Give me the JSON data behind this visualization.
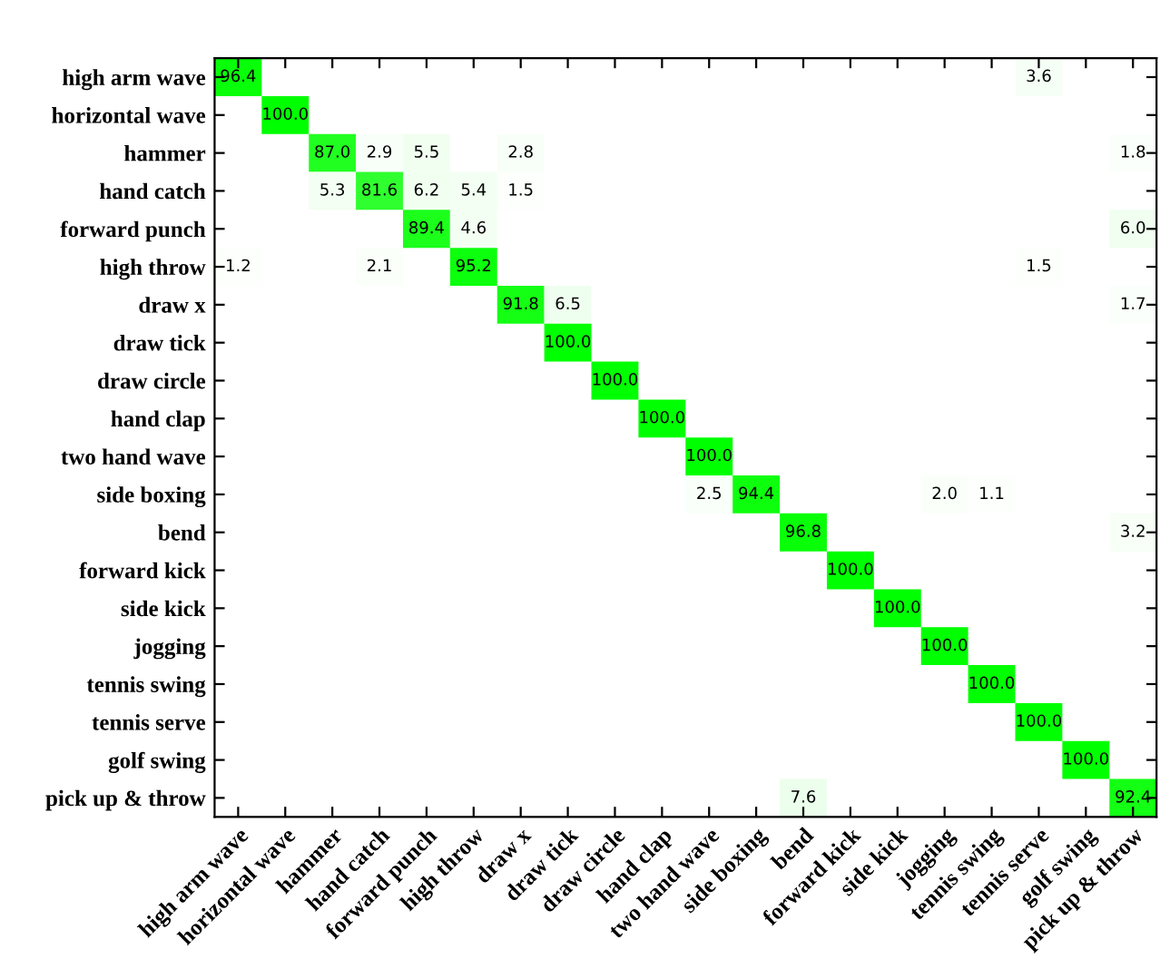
{
  "chart_data": {
    "type": "heatmap",
    "categories": [
      "high arm wave",
      "horizontal wave",
      "hammer",
      "hand catch",
      "forward punch",
      "high throw",
      "draw x",
      "draw tick",
      "draw circle",
      "hand clap",
      "two hand wave",
      "side boxing",
      "bend",
      "forward kick",
      "side kick",
      "jogging",
      "tennis swing",
      "tennis serve",
      "golf swing",
      "pick up & throw"
    ],
    "y_categories": [
      "high arm wave",
      "horizontal wave",
      "hammer",
      "hand catch",
      "forward punch",
      "high throw",
      "draw x",
      "draw tick",
      "draw circle",
      "hand clap",
      "two hand wave",
      "side boxing",
      "bend",
      "forward kick",
      "side kick",
      "jogging",
      "tennis swing",
      "tennis serve",
      "golf swing",
      "pick up & throw"
    ],
    "cells": [
      [
        96.4,
        null,
        null,
        null,
        null,
        null,
        null,
        null,
        null,
        null,
        null,
        null,
        null,
        null,
        null,
        null,
        null,
        3.6,
        null,
        null
      ],
      [
        null,
        100.0,
        null,
        null,
        null,
        null,
        null,
        null,
        null,
        null,
        null,
        null,
        null,
        null,
        null,
        null,
        null,
        null,
        null,
        null
      ],
      [
        null,
        null,
        87.0,
        2.9,
        5.5,
        null,
        2.8,
        null,
        null,
        null,
        null,
        null,
        null,
        null,
        null,
        null,
        null,
        null,
        null,
        1.8
      ],
      [
        null,
        null,
        5.3,
        81.6,
        6.2,
        5.4,
        1.5,
        null,
        null,
        null,
        null,
        null,
        null,
        null,
        null,
        null,
        null,
        null,
        null,
        null
      ],
      [
        null,
        null,
        null,
        null,
        89.4,
        4.6,
        null,
        null,
        null,
        null,
        null,
        null,
        null,
        null,
        null,
        null,
        null,
        null,
        null,
        6.0
      ],
      [
        1.2,
        null,
        null,
        2.1,
        null,
        95.2,
        null,
        null,
        null,
        null,
        null,
        null,
        null,
        null,
        null,
        null,
        null,
        1.5,
        null,
        null
      ],
      [
        null,
        null,
        null,
        null,
        null,
        null,
        91.8,
        6.5,
        null,
        null,
        null,
        null,
        null,
        null,
        null,
        null,
        null,
        null,
        null,
        1.7
      ],
      [
        null,
        null,
        null,
        null,
        null,
        null,
        null,
        100.0,
        null,
        null,
        null,
        null,
        null,
        null,
        null,
        null,
        null,
        null,
        null,
        null
      ],
      [
        null,
        null,
        null,
        null,
        null,
        null,
        null,
        null,
        100.0,
        null,
        null,
        null,
        null,
        null,
        null,
        null,
        null,
        null,
        null,
        null
      ],
      [
        null,
        null,
        null,
        null,
        null,
        null,
        null,
        null,
        null,
        100.0,
        null,
        null,
        null,
        null,
        null,
        null,
        null,
        null,
        null,
        null
      ],
      [
        null,
        null,
        null,
        null,
        null,
        null,
        null,
        null,
        null,
        null,
        100.0,
        null,
        null,
        null,
        null,
        null,
        null,
        null,
        null,
        null
      ],
      [
        null,
        null,
        null,
        null,
        null,
        null,
        null,
        null,
        null,
        null,
        2.5,
        94.4,
        null,
        null,
        null,
        2.0,
        1.1,
        null,
        null,
        null
      ],
      [
        null,
        null,
        null,
        null,
        null,
        null,
        null,
        null,
        null,
        null,
        null,
        null,
        96.8,
        null,
        null,
        null,
        null,
        null,
        null,
        3.2
      ],
      [
        null,
        null,
        null,
        null,
        null,
        null,
        null,
        null,
        null,
        null,
        null,
        null,
        null,
        100.0,
        null,
        null,
        null,
        null,
        null,
        null
      ],
      [
        null,
        null,
        null,
        null,
        null,
        null,
        null,
        null,
        null,
        null,
        null,
        null,
        null,
        null,
        100.0,
        null,
        null,
        null,
        null,
        null
      ],
      [
        null,
        null,
        null,
        null,
        null,
        null,
        null,
        null,
        null,
        null,
        null,
        null,
        null,
        null,
        null,
        100.0,
        null,
        null,
        null,
        null
      ],
      [
        null,
        null,
        null,
        null,
        null,
        null,
        null,
        null,
        null,
        null,
        null,
        null,
        null,
        null,
        null,
        null,
        100.0,
        null,
        null,
        null
      ],
      [
        null,
        null,
        null,
        null,
        null,
        null,
        null,
        null,
        null,
        null,
        null,
        null,
        null,
        null,
        null,
        null,
        null,
        100.0,
        null,
        null
      ],
      [
        null,
        null,
        null,
        null,
        null,
        null,
        null,
        null,
        null,
        null,
        null,
        null,
        null,
        null,
        null,
        null,
        null,
        null,
        100.0,
        null
      ],
      [
        null,
        null,
        null,
        null,
        null,
        null,
        null,
        null,
        null,
        null,
        null,
        null,
        7.6,
        null,
        null,
        null,
        null,
        null,
        null,
        92.4
      ]
    ],
    "cell_labels": [
      [
        "96.4",
        null,
        null,
        null,
        null,
        null,
        null,
        null,
        null,
        null,
        null,
        null,
        null,
        null,
        null,
        null,
        null,
        "3.6",
        null,
        null
      ],
      [
        null,
        "100.0",
        null,
        null,
        null,
        null,
        null,
        null,
        null,
        null,
        null,
        null,
        null,
        null,
        null,
        null,
        null,
        null,
        null,
        null
      ],
      [
        null,
        null,
        "87.0",
        "2.9",
        "5.5",
        null,
        "2.8",
        null,
        null,
        null,
        null,
        null,
        null,
        null,
        null,
        null,
        null,
        null,
        null,
        "1.8"
      ],
      [
        null,
        null,
        "5.3",
        "81.6",
        "6.2",
        "5.4",
        "1.5",
        null,
        null,
        null,
        null,
        null,
        null,
        null,
        null,
        null,
        null,
        null,
        null,
        null
      ],
      [
        null,
        null,
        null,
        null,
        "89.4",
        "4.6",
        null,
        null,
        null,
        null,
        null,
        null,
        null,
        null,
        null,
        null,
        null,
        null,
        null,
        "6.0"
      ],
      [
        "1.2",
        null,
        null,
        "2.1",
        null,
        "95.2",
        null,
        null,
        null,
        null,
        null,
        null,
        null,
        null,
        null,
        null,
        null,
        "1.5",
        null,
        null
      ],
      [
        null,
        null,
        null,
        null,
        null,
        null,
        "91.8",
        "6.5",
        null,
        null,
        null,
        null,
        null,
        null,
        null,
        null,
        null,
        null,
        null,
        "1.7"
      ],
      [
        null,
        null,
        null,
        null,
        null,
        null,
        null,
        "100.0",
        null,
        null,
        null,
        null,
        null,
        null,
        null,
        null,
        null,
        null,
        null,
        null
      ],
      [
        null,
        null,
        null,
        null,
        null,
        null,
        null,
        null,
        "100.0",
        null,
        null,
        null,
        null,
        null,
        null,
        null,
        null,
        null,
        null,
        null
      ],
      [
        null,
        null,
        null,
        null,
        null,
        null,
        null,
        null,
        null,
        "100.0",
        null,
        null,
        null,
        null,
        null,
        null,
        null,
        null,
        null,
        null
      ],
      [
        null,
        null,
        null,
        null,
        null,
        null,
        null,
        null,
        null,
        null,
        "100.0",
        null,
        null,
        null,
        null,
        null,
        null,
        null,
        null,
        null
      ],
      [
        null,
        null,
        null,
        null,
        null,
        null,
        null,
        null,
        null,
        null,
        "2.5",
        "94.4",
        null,
        null,
        null,
        "2.0",
        "1.1",
        null,
        null,
        null
      ],
      [
        null,
        null,
        null,
        null,
        null,
        null,
        null,
        null,
        null,
        null,
        null,
        null,
        "96.8",
        null,
        null,
        null,
        null,
        null,
        null,
        "3.2"
      ],
      [
        null,
        null,
        null,
        null,
        null,
        null,
        null,
        null,
        null,
        null,
        null,
        null,
        null,
        "100.0",
        null,
        null,
        null,
        null,
        null,
        null
      ],
      [
        null,
        null,
        null,
        null,
        null,
        null,
        null,
        null,
        null,
        null,
        null,
        null,
        null,
        null,
        "100.0",
        null,
        null,
        null,
        null,
        null
      ],
      [
        null,
        null,
        null,
        null,
        null,
        null,
        null,
        null,
        null,
        null,
        null,
        null,
        null,
        null,
        null,
        "100.0",
        null,
        null,
        null,
        null
      ],
      [
        null,
        null,
        null,
        null,
        null,
        null,
        null,
        null,
        null,
        null,
        null,
        null,
        null,
        null,
        null,
        null,
        "100.0",
        null,
        null,
        null
      ],
      [
        null,
        null,
        null,
        null,
        null,
        null,
        null,
        null,
        null,
        null,
        null,
        null,
        null,
        null,
        null,
        null,
        null,
        "100.0",
        null,
        null
      ],
      [
        null,
        null,
        null,
        null,
        null,
        null,
        null,
        null,
        null,
        null,
        null,
        null,
        null,
        null,
        null,
        null,
        null,
        null,
        "100.0",
        null
      ],
      [
        null,
        null,
        null,
        null,
        null,
        null,
        null,
        null,
        null,
        null,
        null,
        null,
        "7.6",
        null,
        null,
        null,
        null,
        null,
        null,
        "92.4"
      ]
    ]
  }
}
